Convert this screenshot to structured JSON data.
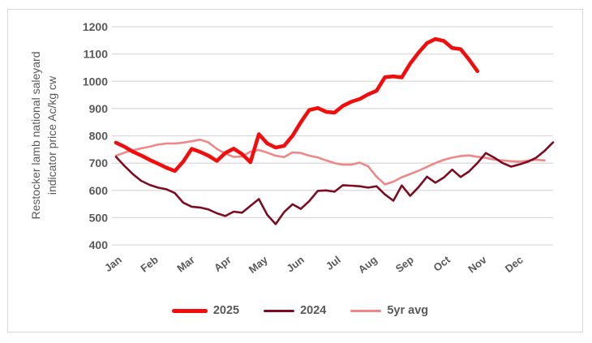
{
  "figure": {
    "background": "#ffffff",
    "border_color": "#d6d6d6",
    "gridline_color": "#d9d9d9",
    "axis_text_color": "#595959"
  },
  "chart_data": {
    "type": "line",
    "title": "",
    "y_title_line1": "Restocker lamb national saleyard",
    "y_title_line2": "indicator price Ac/kg cw",
    "ylabel": "Restocker lamb national saleyard indicator price Ac/kg cw",
    "xlabel": "",
    "ylim": [
      400,
      1200
    ],
    "y_ticks": [
      1200,
      1100,
      1000,
      900,
      800,
      700,
      600,
      500,
      400
    ],
    "x_tick_labels": [
      "Jan",
      "Feb",
      "Mar",
      "Apr",
      "May",
      "Jun",
      "Jul",
      "Aug",
      "Sep",
      "Oct",
      "Nov",
      "Dec"
    ],
    "grid": "horizontal",
    "legend_position": "bottom",
    "x_resolution": "weekly",
    "series": [
      {
        "name": "2025",
        "color": "#f20d0d",
        "line_width": 4.6,
        "values": [
          775,
          760,
          742,
          728,
          712,
          698,
          683,
          671,
          705,
          752,
          741,
          727,
          708,
          737,
          753,
          733,
          703,
          806,
          772,
          757,
          763,
          800,
          850,
          895,
          902,
          888,
          885,
          910,
          925,
          935,
          952,
          965,
          1015,
          1018,
          1014,
          1065,
          1105,
          1140,
          1155,
          1148,
          1122,
          1118,
          1080,
          1037
        ]
      },
      {
        "name": "2024",
        "color": "#7c0d21",
        "line_width": 2.6,
        "values": [
          723,
          690,
          660,
          635,
          620,
          610,
          604,
          590,
          555,
          540,
          537,
          530,
          516,
          506,
          522,
          518,
          543,
          568,
          510,
          476,
          520,
          549,
          532,
          561,
          598,
          600,
          595,
          619,
          617,
          615,
          610,
          615,
          585,
          562,
          618,
          580,
          612,
          650,
          628,
          647,
          676,
          649,
          669,
          700,
          737,
          720,
          700,
          687,
          695,
          705,
          720,
          745,
          776
        ]
      },
      {
        "name": "5yr avg",
        "color": "#ef8787",
        "line_width": 2.6,
        "values": [
          727,
          738,
          747,
          754,
          760,
          768,
          772,
          772,
          775,
          780,
          786,
          776,
          752,
          735,
          723,
          724,
          742,
          748,
          738,
          727,
          722,
          739,
          737,
          727,
          721,
          710,
          700,
          694,
          694,
          702,
          688,
          650,
          622,
          632,
          648,
          660,
          672,
          686,
          700,
          712,
          720,
          726,
          728,
          723,
          719,
          713,
          710,
          707,
          705,
          709,
          712,
          710
        ]
      }
    ]
  }
}
